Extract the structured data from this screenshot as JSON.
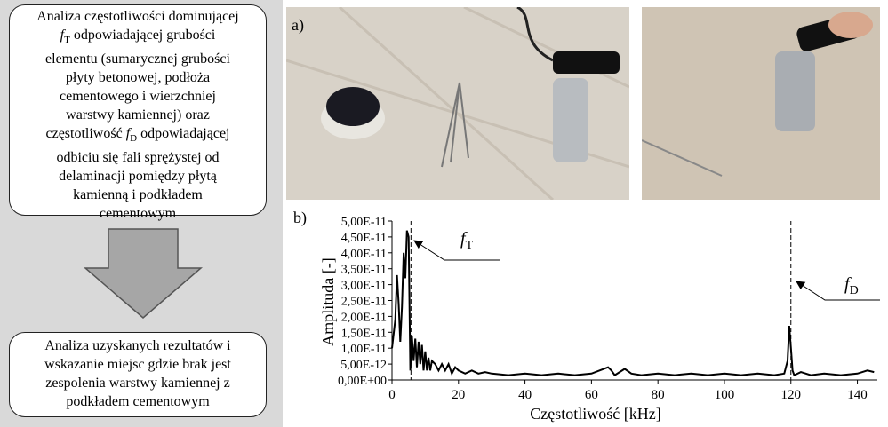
{
  "flow": {
    "steps": [
      {
        "lines": [
          [
            {
              "text": "Analiza częstotliwości dominującej"
            }
          ],
          [
            {
              "text": "f",
              "style": "italic"
            },
            {
              "text": "T",
              "style": "sub"
            },
            {
              "text": " odpowiadającej grubości"
            }
          ],
          [
            {
              "text": "elementu (sumarycznej grubości"
            }
          ],
          [
            {
              "text": "płyty betonowej, podłoża"
            }
          ],
          [
            {
              "text": "cementowego i wierzchniej"
            }
          ],
          [
            {
              "text": "warstwy kamiennej) oraz"
            }
          ],
          [
            {
              "text": "częstotliwość "
            },
            {
              "text": "f",
              "style": "italic"
            },
            {
              "text": "D",
              "style": "sub"
            },
            {
              "text": " odpowiadającej"
            }
          ],
          [
            {
              "text": "odbiciu się fali sprężystej od"
            }
          ],
          [
            {
              "text": "delaminacji pomiędzy płytą"
            }
          ],
          [
            {
              "text": "kamienną i podkładem"
            }
          ],
          [
            {
              "text": "cementowym"
            }
          ]
        ]
      },
      {
        "lines": [
          [
            {
              "text": "Analiza uzyskanych rezultatów i"
            }
          ],
          [
            {
              "text": "wskazanie miejsc gdzie brak jest"
            }
          ],
          [
            {
              "text": "zespolenia warstwy kamiennej z"
            }
          ],
          [
            {
              "text": "podkładem cementowym"
            }
          ]
        ]
      }
    ]
  },
  "panel_labels": [
    "a)",
    "b)"
  ],
  "chart_data": {
    "type": "line",
    "x_label": "Częstotliwość [kHz]",
    "y_label": "Amplituda [-]",
    "xlim": [
      0,
      146
    ],
    "xticks": [
      0,
      20,
      40,
      60,
      80,
      100,
      120,
      140
    ],
    "ylim": [
      0,
      5e-11
    ],
    "yticks": [
      {
        "value": 0,
        "label": "0,00E+00"
      },
      {
        "value": 5e-12,
        "label": "5,00E-12"
      },
      {
        "value": 1e-11,
        "label": "1,00E-11"
      },
      {
        "value": 1.5e-11,
        "label": "1,50E-11"
      },
      {
        "value": 2e-11,
        "label": "2,00E-11"
      },
      {
        "value": 2.5e-11,
        "label": "2,50E-11"
      },
      {
        "value": 3e-11,
        "label": "3,00E-11"
      },
      {
        "value": 3.5e-11,
        "label": "3,50E-11"
      },
      {
        "value": 4e-11,
        "label": "4,00E-11"
      },
      {
        "value": 4.5e-11,
        "label": "4,50E-11"
      },
      {
        "value": 5e-11,
        "label": "5,00E-11"
      }
    ],
    "color": "#000000",
    "x": [
      0,
      1,
      1.5,
      2,
      2.5,
      3,
      3.5,
      4,
      4.5,
      5,
      5.5,
      6,
      6.5,
      7,
      7.5,
      8,
      8.5,
      9,
      9.5,
      10,
      10.5,
      11,
      11.5,
      12,
      13,
      14,
      15,
      16,
      17,
      18,
      19,
      20,
      22,
      24,
      26,
      28,
      30,
      35,
      40,
      45,
      50,
      55,
      60,
      65,
      66,
      67,
      70,
      72,
      75,
      80,
      85,
      90,
      95,
      100,
      105,
      110,
      115,
      118,
      119,
      119.5,
      120,
      120.5,
      121,
      123,
      126,
      130,
      135,
      140,
      143,
      145
    ],
    "values": [
      1e-11,
      1.9e-11,
      3.3e-11,
      2.4e-11,
      1.2e-11,
      2.3e-11,
      4e-11,
      3.2e-11,
      4.7e-11,
      4.5e-11,
      3e-12,
      1.4e-11,
      6e-12,
      1.3e-11,
      4e-12,
      1.2e-11,
      5e-12,
      1.1e-11,
      3e-12,
      9e-12,
      3e-12,
      7e-12,
      3e-12,
      6e-12,
      5e-12,
      3e-12,
      5e-12,
      3e-12,
      5e-12,
      2e-12,
      4e-12,
      3e-12,
      2e-12,
      3e-12,
      2e-12,
      2.5e-12,
      2e-12,
      1.5e-12,
      2e-12,
      1.5e-12,
      2e-12,
      1.5e-12,
      2e-12,
      4e-12,
      3e-12,
      1.5e-12,
      3.5e-12,
      2e-12,
      1.5e-12,
      2e-12,
      1.5e-12,
      2e-12,
      1.5e-12,
      2e-12,
      1.5e-12,
      2e-12,
      1.5e-12,
      2e-12,
      6e-12,
      1.7e-11,
      1e-11,
      3e-12,
      1.5e-12,
      2.5e-12,
      1.5e-12,
      2e-12,
      1.5e-12,
      2e-12,
      3e-12,
      2.5e-12
    ],
    "annotations": [
      {
        "x": 5.7,
        "symbol": "f",
        "subscript": "T"
      },
      {
        "x": 120,
        "symbol": "f",
        "subscript": "D"
      }
    ]
  }
}
